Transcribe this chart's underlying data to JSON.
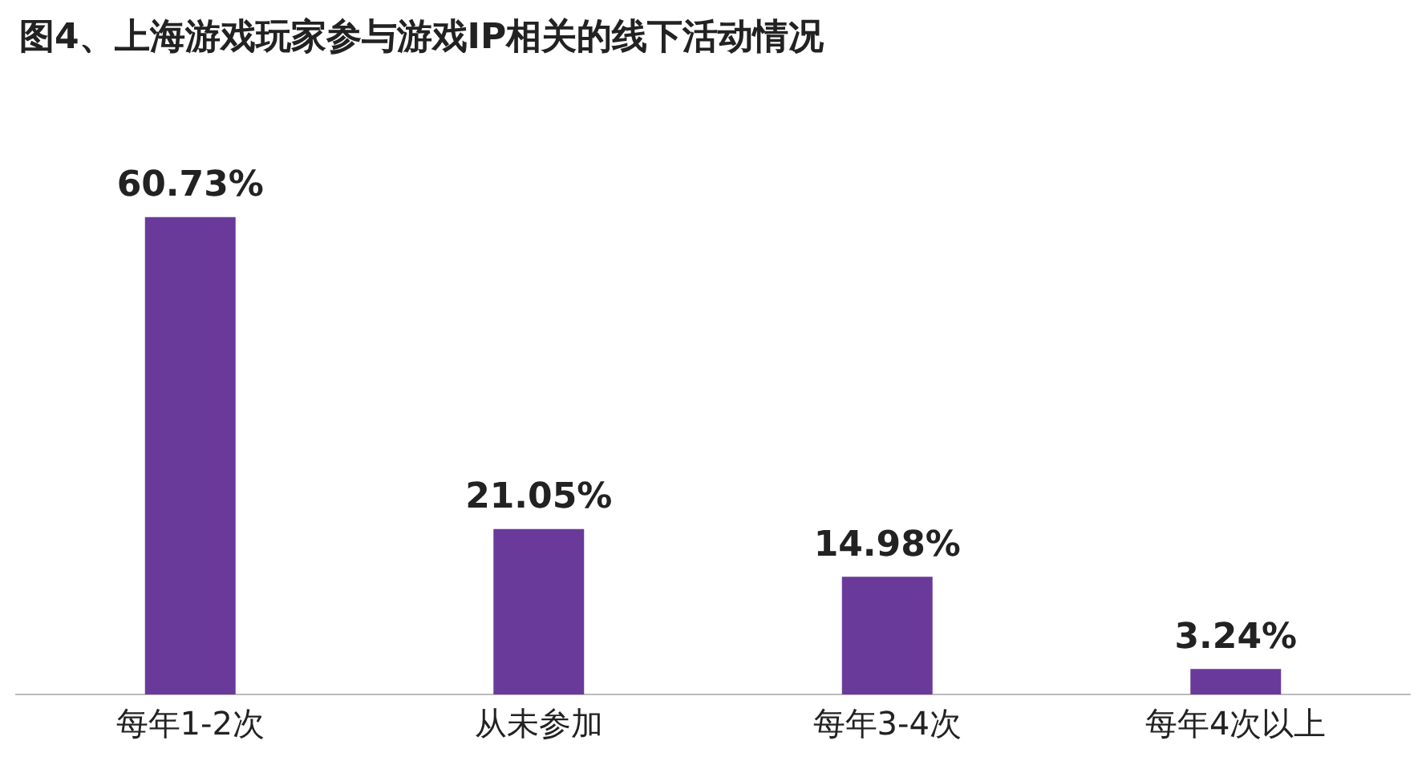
{
  "chart_data": {
    "type": "bar",
    "title": "图4、上海游戏玩家参与游戏IP相关的线下活动情况",
    "categories": [
      "每年1-2次",
      "从未参加",
      "每年3-4次",
      "每年4次以上"
    ],
    "values": [
      60.73,
      21.05,
      14.98,
      3.24
    ],
    "value_labels": [
      "60.73%",
      "21.05%",
      "14.98%",
      "3.24%"
    ],
    "color": "#6a3a9a",
    "grid": false,
    "legend": false
  }
}
